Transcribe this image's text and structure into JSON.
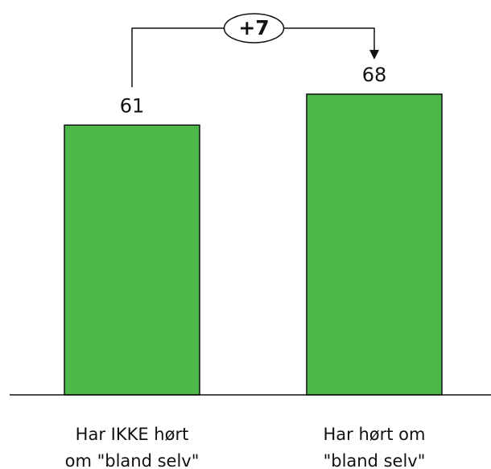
{
  "chart_data": {
    "type": "bar",
    "categories": [
      "Har IKKE hørt\nom \"bland selv\"",
      "Har hørt om\n\"bland selv\""
    ],
    "values": [
      61,
      68
    ],
    "color": "#4cb84a",
    "ylim": [
      0,
      80
    ],
    "annotation": "+7"
  }
}
